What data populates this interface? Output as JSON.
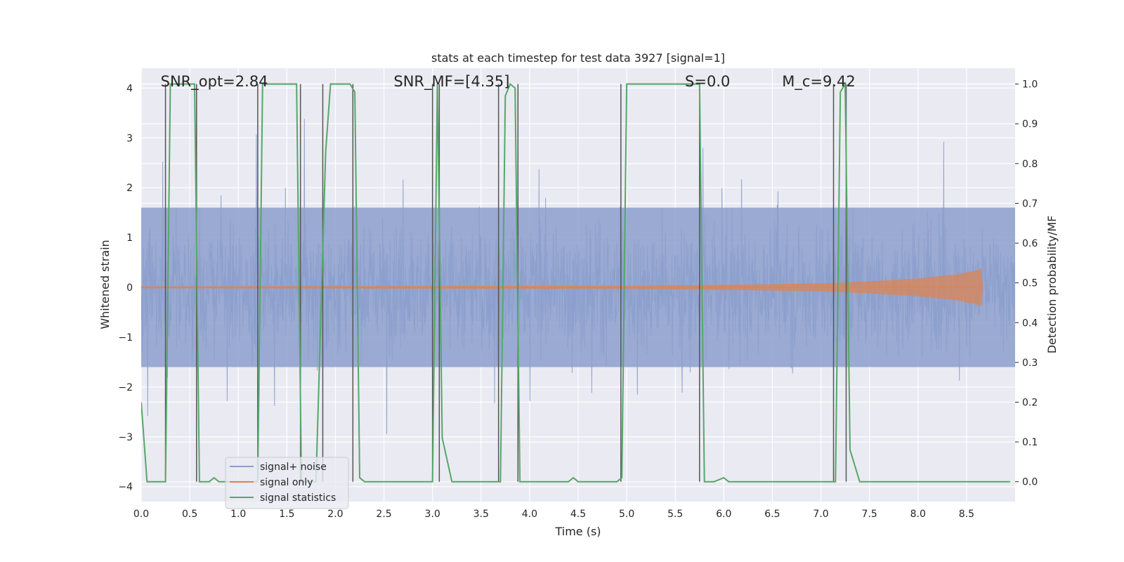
{
  "chart_data": {
    "type": "line",
    "title": "stats at each timestep for test data 3927 [signal=1]",
    "xlabel": "Time (s)",
    "ylabel_left": "Whitened strain",
    "ylabel_right": "Detection probability/MF",
    "xlim": [
      0.0,
      9.0
    ],
    "ylim_left": [
      -4.3,
      4.4
    ],
    "ylim_right": [
      -0.05,
      1.04
    ],
    "xticks": [
      "0.0",
      "0.5",
      "1.0",
      "1.5",
      "2.0",
      "2.5",
      "3.0",
      "3.5",
      "4.0",
      "4.5",
      "5.0",
      "5.5",
      "6.0",
      "6.5",
      "7.0",
      "7.5",
      "8.0",
      "8.5"
    ],
    "yticks_left": [
      "−4",
      "−3",
      "−2",
      "−1",
      "0",
      "1",
      "2",
      "3",
      "4"
    ],
    "yticks_right": [
      "0.0",
      "0.1",
      "0.2",
      "0.3",
      "0.4",
      "0.5",
      "0.6",
      "0.7",
      "0.8",
      "0.9",
      "1.0"
    ],
    "grid": true,
    "legend_position": "lower-left",
    "annotations": [
      {
        "text": "SNR_opt=2.84",
        "x_data": 0.2
      },
      {
        "text": "SNR_MF=[4.35]",
        "x_data": 2.6
      },
      {
        "text": "S=0.0",
        "x_data": 5.6
      },
      {
        "text": "M_c=9.42",
        "x_data": 6.6
      }
    ],
    "series": [
      {
        "name": "signal+ noise",
        "color": "#8c9fcc",
        "kind": "noise",
        "amplitude_typical": 1.6,
        "amplitude_peak": 4.0
      },
      {
        "name": "signal only",
        "color": "#dd8452",
        "kind": "chirp",
        "envelope": [
          [
            0.0,
            0.02
          ],
          [
            5.0,
            0.03
          ],
          [
            6.0,
            0.05
          ],
          [
            7.0,
            0.08
          ],
          [
            7.5,
            0.12
          ],
          [
            8.0,
            0.18
          ],
          [
            8.4,
            0.26
          ],
          [
            8.6,
            0.34
          ],
          [
            8.65,
            0.38
          ],
          [
            8.67,
            0.0
          ]
        ]
      },
      {
        "name": "signal statistics",
        "color": "#55a868",
        "axis": "right",
        "x": [
          0.0,
          0.06,
          0.25,
          0.3,
          0.55,
          0.6,
          0.7,
          0.75,
          0.8,
          0.85,
          1.0,
          1.2,
          1.25,
          1.3,
          1.6,
          1.65,
          1.8,
          1.9,
          1.95,
          2.15,
          2.2,
          2.25,
          2.3,
          3.0,
          3.05,
          3.1,
          3.2,
          3.7,
          3.75,
          3.8,
          3.85,
          3.9,
          4.4,
          4.45,
          4.5,
          4.9,
          4.95,
          5.0,
          5.75,
          5.8,
          5.9,
          6.0,
          6.05,
          7.15,
          7.2,
          7.25,
          7.3,
          7.4,
          8.95
        ],
        "values": [
          0.2,
          0.0,
          0.0,
          1.0,
          1.0,
          0.0,
          0.0,
          0.01,
          0.0,
          0.0,
          0.0,
          0.0,
          1.0,
          1.0,
          1.0,
          0.0,
          0.0,
          0.83,
          1.0,
          1.0,
          0.98,
          0.01,
          0.0,
          0.0,
          1.0,
          0.11,
          0.0,
          0.0,
          0.97,
          1.0,
          0.99,
          0.0,
          0.0,
          0.01,
          0.0,
          0.0,
          0.01,
          1.0,
          1.0,
          0.0,
          0.0,
          0.01,
          0.0,
          0.0,
          0.98,
          1.0,
          0.08,
          0.0,
          0.0
        ]
      }
    ],
    "vlines": [
      0.25,
      0.57,
      1.2,
      1.64,
      1.87,
      2.18,
      3.0,
      3.07,
      3.68,
      3.88,
      4.94,
      5.75,
      7.13,
      7.26
    ]
  }
}
